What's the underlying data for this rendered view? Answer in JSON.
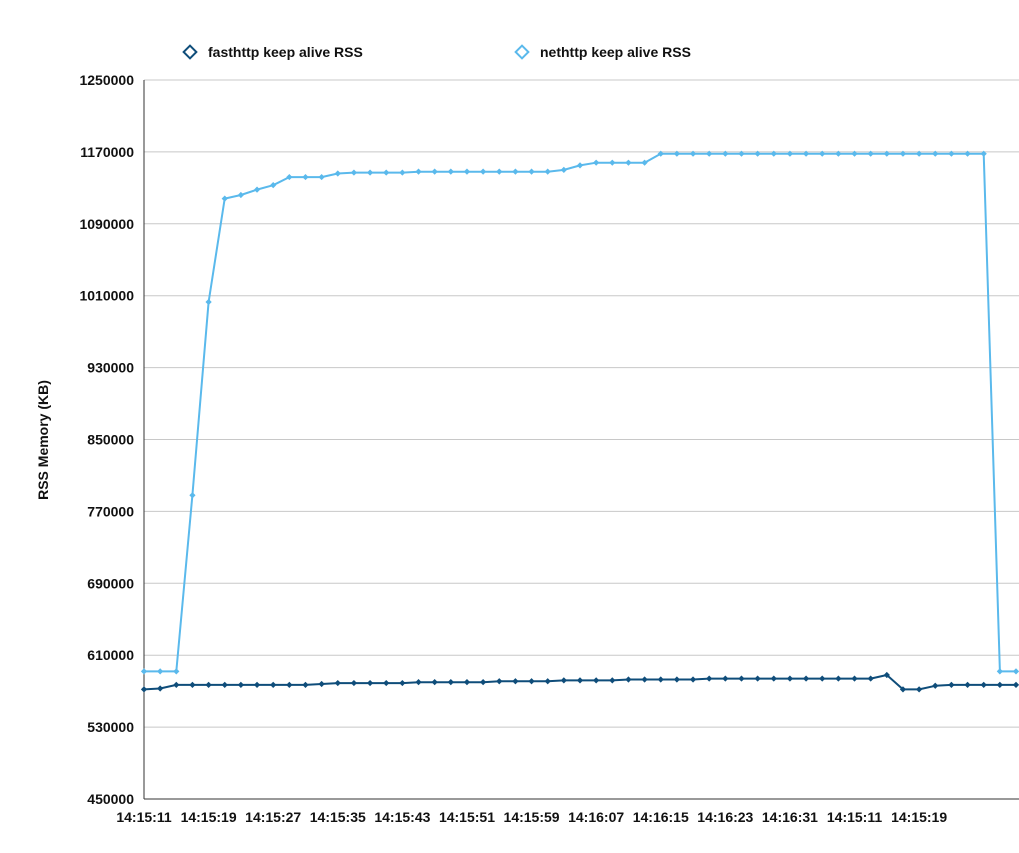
{
  "chart_data": {
    "type": "line",
    "title": "",
    "xlabel": "",
    "ylabel": "RSS Memory  (KB)",
    "ylim": [
      450000,
      1250000
    ],
    "yticks": [
      "450000",
      "530000",
      "610000",
      "690000",
      "770000",
      "850000",
      "930000",
      "1010000",
      "1090000",
      "1170000",
      "1250000"
    ],
    "xtick_labels": [
      "14:15:11",
      "14:15:19",
      "14:15:27",
      "14:15:35",
      "14:15:43",
      "14:15:51",
      "14:15:59",
      "14:16:07",
      "14:16:15",
      "14:16:23",
      "14:16:31",
      "14:15:11",
      "14:15:19"
    ],
    "grid": true,
    "legend_position": "top",
    "series": [
      {
        "name": "fasthttp keep alive RSS",
        "color": "#0f4d7a",
        "values": [
          572000,
          573000,
          577000,
          577000,
          577000,
          577000,
          577000,
          577000,
          577000,
          577000,
          577000,
          578000,
          579000,
          579000,
          579000,
          579000,
          579000,
          580000,
          580000,
          580000,
          580000,
          580000,
          581000,
          581000,
          581000,
          581000,
          582000,
          582000,
          582000,
          582000,
          583000,
          583000,
          583000,
          583000,
          583000,
          584000,
          584000,
          584000,
          584000,
          584000,
          584000,
          584000,
          584000,
          584000,
          584000,
          584000,
          588000,
          572000,
          572000,
          576000,
          577000,
          577000,
          577000,
          577000,
          577000
        ]
      },
      {
        "name": "nethttp keep alive RSS",
        "color": "#5ab9ec",
        "values": [
          592000,
          592000,
          592000,
          788000,
          1003000,
          1118000,
          1122000,
          1128000,
          1133000,
          1142000,
          1142000,
          1142000,
          1146000,
          1147000,
          1147000,
          1147000,
          1147000,
          1148000,
          1148000,
          1148000,
          1148000,
          1148000,
          1148000,
          1148000,
          1148000,
          1148000,
          1150000,
          1155000,
          1158000,
          1158000,
          1158000,
          1158000,
          1168000,
          1168000,
          1168000,
          1168000,
          1168000,
          1168000,
          1168000,
          1168000,
          1168000,
          1168000,
          1168000,
          1168000,
          1168000,
          1168000,
          1168000,
          1168000,
          1168000,
          1168000,
          1168000,
          1168000,
          1168000,
          592000,
          592000
        ]
      }
    ]
  }
}
